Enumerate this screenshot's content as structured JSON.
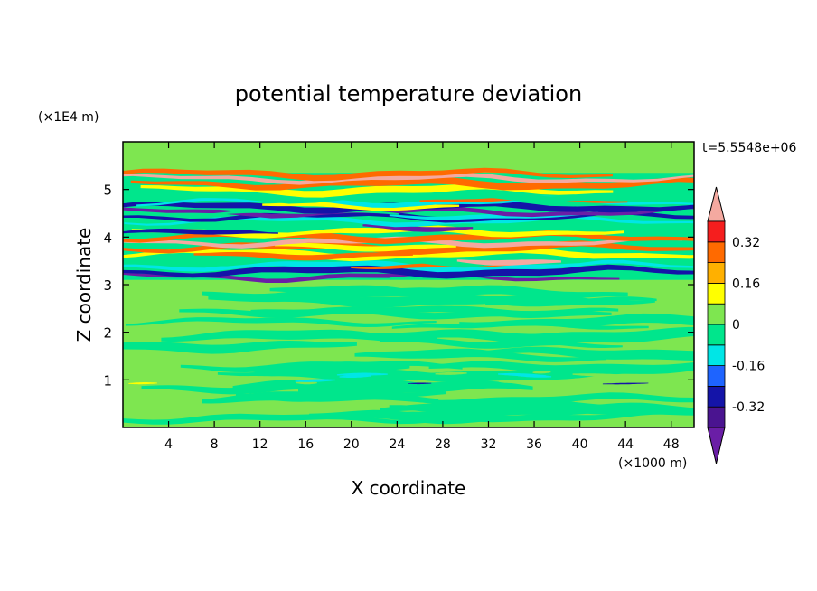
{
  "chart_data": {
    "type": "heatmap",
    "title": "potential temperature deviation",
    "xlabel": "X coordinate",
    "ylabel": "Z coordinate",
    "x_unit": "(×1000 m)",
    "y_unit": "(×1E4 m)",
    "time_label": "t=5.5548e+06",
    "xlim": [
      0,
      50
    ],
    "ylim": [
      0,
      6
    ],
    "x_ticks": [
      4,
      8,
      12,
      16,
      20,
      24,
      28,
      32,
      36,
      40,
      44,
      48
    ],
    "y_ticks": [
      1,
      2,
      3,
      4,
      5
    ],
    "colorbar": {
      "levels": [
        -0.4,
        -0.32,
        -0.24,
        -0.16,
        -0.08,
        0,
        0.08,
        0.16,
        0.24,
        0.32,
        0.4
      ],
      "tick_labels": [
        "0.32",
        "0.16",
        "0",
        "-0.16",
        "-0.32"
      ],
      "tick_values": [
        0.32,
        0.16,
        0,
        -0.16,
        -0.32
      ],
      "colors": [
        "#6a1ea6",
        "#4a1490",
        "#1414a8",
        "#1e64ff",
        "#00e6e6",
        "#00e68c",
        "#7ee650",
        "#ffff00",
        "#ffb000",
        "#ff6a00",
        "#f51e1e",
        "#f4a9a0"
      ],
      "extend": "both"
    },
    "layers": [
      {
        "z_range": [
          0,
          3.1
        ],
        "description_values": [
          -0.08,
          0.08
        ]
      },
      {
        "z_range": [
          3.1,
          5.4
        ],
        "description_values": [
          -0.4,
          0.4
        ]
      },
      {
        "z_range": [
          5.4,
          6
        ],
        "description_values": [
          -0.08,
          0.08
        ]
      }
    ]
  }
}
